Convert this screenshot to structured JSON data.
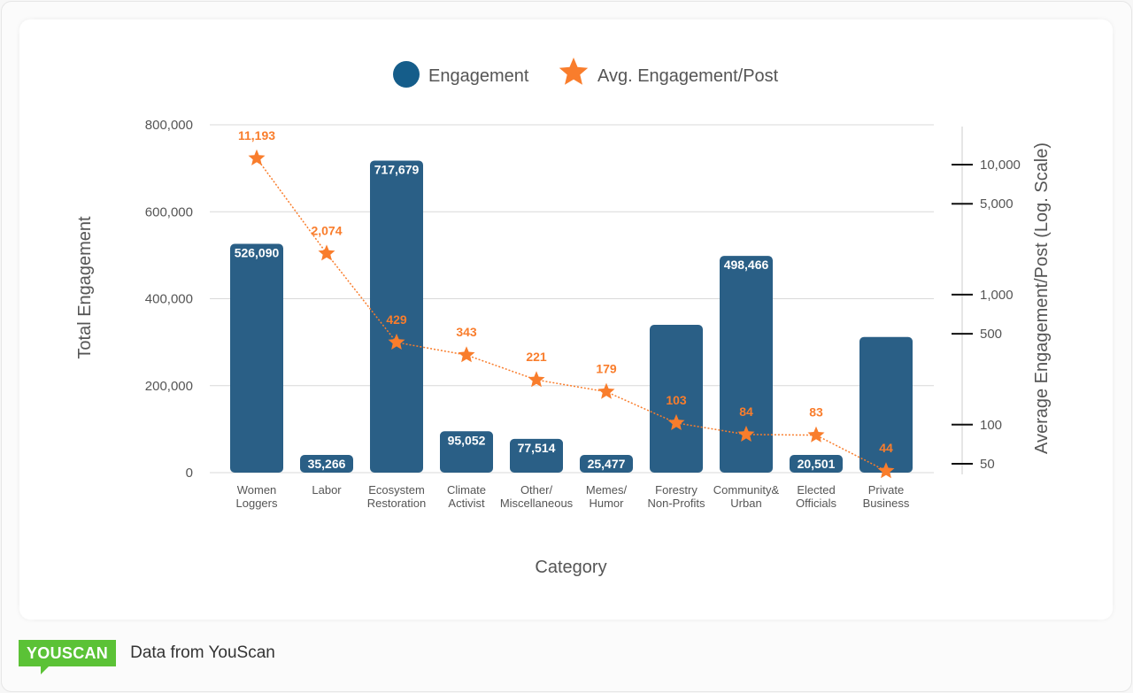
{
  "chart_data": {
    "type": "bar+line",
    "xlabel": "Category",
    "ylabel": "Total Engagement",
    "y2label": "Average Engagement/Post (Log. Scale)",
    "ylim": [
      0,
      800000
    ],
    "yticks": [
      "0",
      "200,000",
      "400,000",
      "600,000",
      "800,000"
    ],
    "ytick_values": [
      0,
      200000,
      400000,
      600000,
      800000
    ],
    "y2scale": "log",
    "y2ticks": [
      "50",
      "100",
      "500",
      "1,000",
      "5,000",
      "10,000"
    ],
    "y2tick_values": [
      50,
      100,
      500,
      1000,
      5000,
      10000
    ],
    "grid": true,
    "legend_position": "top-center",
    "categories": [
      [
        "Women",
        "Loggers"
      ],
      [
        "Labor"
      ],
      [
        "Ecosystem",
        "Restoration"
      ],
      [
        "Climate",
        "Activist"
      ],
      [
        "Other/",
        "Miscellaneous"
      ],
      [
        "Memes/",
        "Humor"
      ],
      [
        "Forestry",
        "Non-Profits"
      ],
      [
        "Community&",
        "Urban"
      ],
      [
        "Elected",
        "Officials"
      ],
      [
        "Private",
        "Business"
      ]
    ],
    "series": [
      {
        "name": "Engagement",
        "type": "bar",
        "color": "#2a5f86",
        "values": [
          526090,
          35266,
          717679,
          95052,
          77514,
          25477,
          340000,
          498466,
          20501,
          312000
        ],
        "labels": [
          "526,090",
          "35,266",
          "717,679",
          "95,052",
          "77,514",
          "25,477",
          "",
          "498,466",
          "20,501",
          ""
        ]
      },
      {
        "name": "Avg. Engagement/Post",
        "type": "line",
        "marker": "star",
        "color": "#f97d2c",
        "axis": "right",
        "values": [
          11193,
          2074,
          429,
          343,
          221,
          179,
          103,
          84,
          83,
          44
        ],
        "labels": [
          "11,193",
          "2,074",
          "429",
          "343",
          "221",
          "179",
          "103",
          "84",
          "83",
          "44"
        ]
      }
    ]
  },
  "legend": {
    "engagement": "Engagement",
    "avg": "Avg. Engagement/Post"
  },
  "footer": {
    "logo": "YOUSCAN",
    "source": "Data from YouScan"
  }
}
